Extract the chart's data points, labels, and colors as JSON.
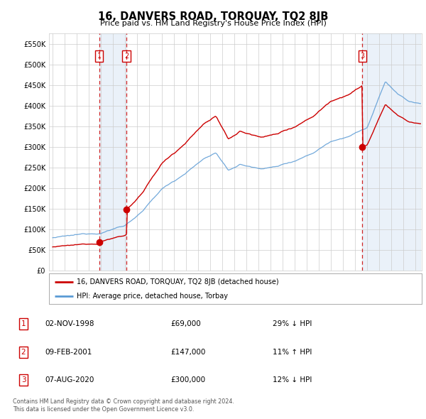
{
  "title": "16, DANVERS ROAD, TORQUAY, TQ2 8JB",
  "subtitle": "Price paid vs. HM Land Registry's House Price Index (HPI)",
  "yticks": [
    0,
    50000,
    100000,
    150000,
    200000,
    250000,
    300000,
    350000,
    400000,
    450000,
    500000,
    550000
  ],
  "ytick_labels": [
    "£0",
    "£50K",
    "£100K",
    "£150K",
    "£200K",
    "£250K",
    "£300K",
    "£350K",
    "£400K",
    "£450K",
    "£500K",
    "£550K"
  ],
  "xlim_start": 1994.7,
  "xlim_end": 2025.5,
  "ylim": [
    0,
    575000
  ],
  "hpi_color": "#5b9bd5",
  "price_color": "#cc0000",
  "vline_color": "#cc0000",
  "shade_color": "#dce9f5",
  "legend_label_price": "16, DANVERS ROAD, TORQUAY, TQ2 8JB (detached house)",
  "legend_label_hpi": "HPI: Average price, detached house, Torbay",
  "transactions": [
    {
      "num": 1,
      "year": 1998.84,
      "price": 69000
    },
    {
      "num": 2,
      "year": 2001.11,
      "price": 147000
    },
    {
      "num": 3,
      "year": 2020.59,
      "price": 300000
    }
  ],
  "footer_line1": "Contains HM Land Registry data © Crown copyright and database right 2024.",
  "footer_line2": "This data is licensed under the Open Government Licence v3.0.",
  "table_rows": [
    {
      "num": 1,
      "date": "02-NOV-1998",
      "price": "£69,000",
      "pct_hpi": "29% ↓ HPI"
    },
    {
      "num": 2,
      "date": "09-FEB-2001",
      "price": "£147,000",
      "pct_hpi": "11% ↑ HPI"
    },
    {
      "num": 3,
      "date": "07-AUG-2020",
      "price": "£300,000",
      "pct_hpi": "12% ↓ HPI"
    }
  ]
}
